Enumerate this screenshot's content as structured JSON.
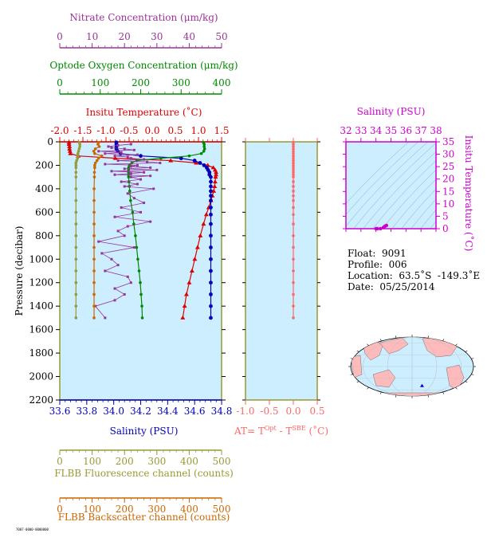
{
  "chart_data": [
    {
      "type": "scatter",
      "panel": "main-profile",
      "y_axis": {
        "label": "Pressure (decibar)",
        "range": [
          0,
          2200
        ],
        "reversed": true,
        "ticks": [
          0,
          200,
          400,
          600,
          800,
          1000,
          1200,
          1400,
          1600,
          1800,
          2000,
          2200
        ]
      },
      "axes": {
        "nitrate": {
          "label": "Nitrate Concentration (μm/kg)",
          "color": "#993399",
          "range": [
            0,
            50
          ],
          "ticks": [
            0,
            10,
            20,
            30,
            40,
            50
          ]
        },
        "oxygen": {
          "label": "Optode Oxygen Concentration (μm/kg)",
          "color": "#008800",
          "range": [
            0,
            400
          ],
          "ticks": [
            0,
            100,
            200,
            300,
            400
          ]
        },
        "temperature": {
          "label": "Insitu Temperature (˚C)",
          "color": "#dd0000",
          "range": [
            -2.0,
            1.5
          ],
          "ticks": [
            "-2.0",
            "-1.5",
            "-1.0",
            "-0.5",
            "0.0",
            "0.5",
            "1.0",
            "1.5"
          ]
        },
        "salinity": {
          "label": "Salinity (PSU)",
          "color": "#0000bb",
          "range": [
            33.6,
            34.8
          ],
          "ticks": [
            "33.6",
            "33.8",
            "34.0",
            "34.2",
            "34.4",
            "34.6",
            "34.8"
          ]
        },
        "fluorescence": {
          "label": "FLBB Fluorescence channel (counts)",
          "color": "#999933",
          "range": [
            0,
            500
          ],
          "ticks": [
            0,
            100,
            200,
            300,
            400,
            500
          ]
        },
        "backscatter": {
          "label": "FLBB Backscatter channel (counts)",
          "color": "#cc6600",
          "range": [
            0,
            500
          ],
          "ticks": [
            0,
            100,
            200,
            300,
            400,
            500
          ]
        }
      },
      "series": [
        {
          "key": "temperature",
          "pressure": [
            5,
            20,
            40,
            60,
            80,
            100,
            120,
            140,
            160,
            180,
            200,
            220,
            240,
            260,
            280,
            300,
            340,
            380,
            420,
            460,
            500,
            560,
            620,
            700,
            800,
            900,
            1000,
            1100,
            1200,
            1300,
            1400,
            1500
          ],
          "values": [
            -1.8,
            -1.8,
            -1.79,
            -1.79,
            -1.78,
            -1.77,
            -1.6,
            -0.8,
            0.4,
            0.95,
            1.2,
            1.32,
            1.36,
            1.38,
            1.38,
            1.37,
            1.36,
            1.35,
            1.33,
            1.3,
            1.27,
            1.22,
            1.17,
            1.11,
            1.04,
            0.98,
            0.92,
            0.86,
            0.8,
            0.74,
            0.7,
            0.66
          ]
        },
        {
          "key": "salinity",
          "pressure": [
            5,
            20,
            40,
            60,
            80,
            100,
            120,
            140,
            160,
            180,
            200,
            220,
            240,
            260,
            280,
            300,
            340,
            380,
            420,
            460,
            500,
            560,
            620,
            700,
            800,
            900,
            1000,
            1100,
            1200,
            1300,
            1400,
            1500
          ],
          "values": [
            34.02,
            34.02,
            34.02,
            34.02,
            34.03,
            34.05,
            34.2,
            34.5,
            34.6,
            34.64,
            34.67,
            34.69,
            34.7,
            34.71,
            34.71,
            34.72,
            34.72,
            34.72,
            34.72,
            34.72,
            34.72,
            34.72,
            34.72,
            34.72,
            34.72,
            34.72,
            34.72,
            34.72,
            34.72,
            34.72,
            34.72,
            34.72
          ]
        },
        {
          "key": "oxygen",
          "pressure": [
            5,
            20,
            40,
            60,
            80,
            100,
            120,
            140,
            160,
            180,
            200,
            220,
            240,
            260,
            280,
            300,
            340,
            380,
            420,
            500,
            600,
            700,
            800,
            900,
            1000,
            1100,
            1200,
            1300,
            1400,
            1500
          ],
          "values": [
            355,
            357,
            357,
            358,
            356,
            350,
            320,
            250,
            190,
            178,
            172,
            170,
            170,
            170,
            170,
            170,
            171,
            172,
            173,
            175,
            180,
            183,
            187,
            190,
            193,
            196,
            199,
            201,
            203,
            204
          ]
        },
        {
          "key": "nitrate",
          "pressure": [
            20,
            30,
            40,
            50,
            60,
            70,
            80,
            90,
            100,
            110,
            120,
            130,
            140,
            150,
            160,
            170,
            180,
            190,
            200,
            210,
            220,
            230,
            240,
            250,
            260,
            270,
            280,
            290,
            300,
            320,
            340,
            360,
            380,
            400,
            440,
            480,
            520,
            560,
            600,
            640,
            680,
            720,
            760,
            800,
            850,
            900,
            950,
            1000,
            1050,
            1100,
            1150,
            1200,
            1250,
            1300,
            1350,
            1400,
            1500
          ],
          "values": [
            22,
            18,
            15,
            16,
            20,
            23,
            12,
            19,
            14,
            24,
            17,
            21,
            22,
            26,
            18,
            27,
            31,
            14,
            24,
            22,
            28,
            20,
            30,
            16,
            26,
            22,
            17,
            28,
            22,
            25,
            19,
            24,
            20,
            29,
            21,
            23,
            26,
            19,
            25,
            17,
            28,
            21,
            18,
            20,
            12,
            23,
            13,
            16,
            18,
            14,
            21,
            22,
            17,
            20,
            17,
            11,
            14
          ]
        },
        {
          "key": "fluorescence",
          "pressure": [
            5,
            20,
            40,
            60,
            80,
            100,
            120,
            140,
            160,
            180,
            200,
            220,
            260,
            300,
            400,
            500,
            600,
            700,
            800,
            900,
            1000,
            1100,
            1200,
            1300,
            1400,
            1500
          ],
          "values": [
            60,
            62,
            62,
            60,
            58,
            56,
            56,
            55,
            52,
            50,
            50,
            50,
            50,
            50,
            50,
            50,
            50,
            50,
            50,
            50,
            50,
            50,
            50,
            50,
            50,
            50
          ]
        },
        {
          "key": "backscatter",
          "pressure": [
            5,
            20,
            40,
            60,
            80,
            100,
            120,
            140,
            160,
            180,
            200,
            220,
            260,
            300,
            400,
            500,
            600,
            700,
            800,
            900,
            1000,
            1100,
            1200,
            1300,
            1400,
            1500
          ],
          "values": [
            120,
            118,
            122,
            110,
            105,
            108,
            130,
            120,
            115,
            110,
            108,
            108,
            107,
            107,
            106,
            106,
            106,
            106,
            106,
            106,
            106,
            106,
            106,
            106,
            106,
            106
          ]
        }
      ]
    },
    {
      "type": "scatter",
      "panel": "delta-temperature",
      "x_axis": {
        "label_parts": {
          "base": "AT= T",
          "sup1": "Opt",
          "mid": " - T",
          "sup2": "SBE",
          "tail": " (˚C)"
        },
        "range": [
          -1.0,
          0.5
        ],
        "ticks": [
          "-1.0",
          "-0.5",
          "0.0",
          "0.5"
        ],
        "color": "#ff6666"
      },
      "series": [
        {
          "key": "delta",
          "pressure": [
            5,
            20,
            40,
            60,
            80,
            100,
            120,
            140,
            160,
            180,
            200,
            220,
            240,
            260,
            280,
            300,
            340,
            380,
            420,
            460,
            500,
            560,
            620,
            700,
            800,
            900,
            1000,
            1100,
            1200,
            1300,
            1400,
            1500
          ],
          "values": [
            0.0,
            0.0,
            0.0,
            0.0,
            0.0,
            0.0,
            0.0,
            0.0,
            0.0,
            0.0,
            0.0,
            0.0,
            0.0,
            0.0,
            0.0,
            0.0,
            0.0,
            0.0,
            0.0,
            0.0,
            0.0,
            0.0,
            0.0,
            0.0,
            0.0,
            0.0,
            0.0,
            0.0,
            0.0,
            0.0,
            0.0,
            0.0
          ]
        }
      ]
    },
    {
      "type": "scatter",
      "panel": "ts-diagram",
      "x_axis": {
        "label": "Salinity (PSU)",
        "range": [
          32,
          38
        ],
        "ticks": [
          "32",
          "33",
          "34",
          "35",
          "36",
          "37",
          "38"
        ]
      },
      "y_axis": {
        "label": "Insitu Temperature (˚C)",
        "range": [
          0,
          35
        ],
        "ticks": [
          "0",
          "5",
          "10",
          "15",
          "20",
          "25",
          "30",
          "35"
        ]
      },
      "color": "#cc00cc",
      "series": [
        {
          "salinity": [
            34.0,
            34.1,
            34.3,
            34.5,
            34.6,
            34.7
          ],
          "temperature": [
            -1.8,
            -1.7,
            -0.5,
            0.5,
            1.0,
            1.3
          ]
        }
      ]
    }
  ],
  "info": {
    "float": "Float:  9091",
    "profile": "Profile:  006",
    "location": "Location:  63.5˚S  -149.3˚E",
    "date": "Date:  05/25/2014"
  },
  "map": {
    "marker_lat": -63.5,
    "marker_lon": -149.3
  },
  "footer": {
    "tag": "7007-0000-0000000"
  },
  "colors": {
    "plot_bg": "#cceeff",
    "frame": "#999933"
  }
}
